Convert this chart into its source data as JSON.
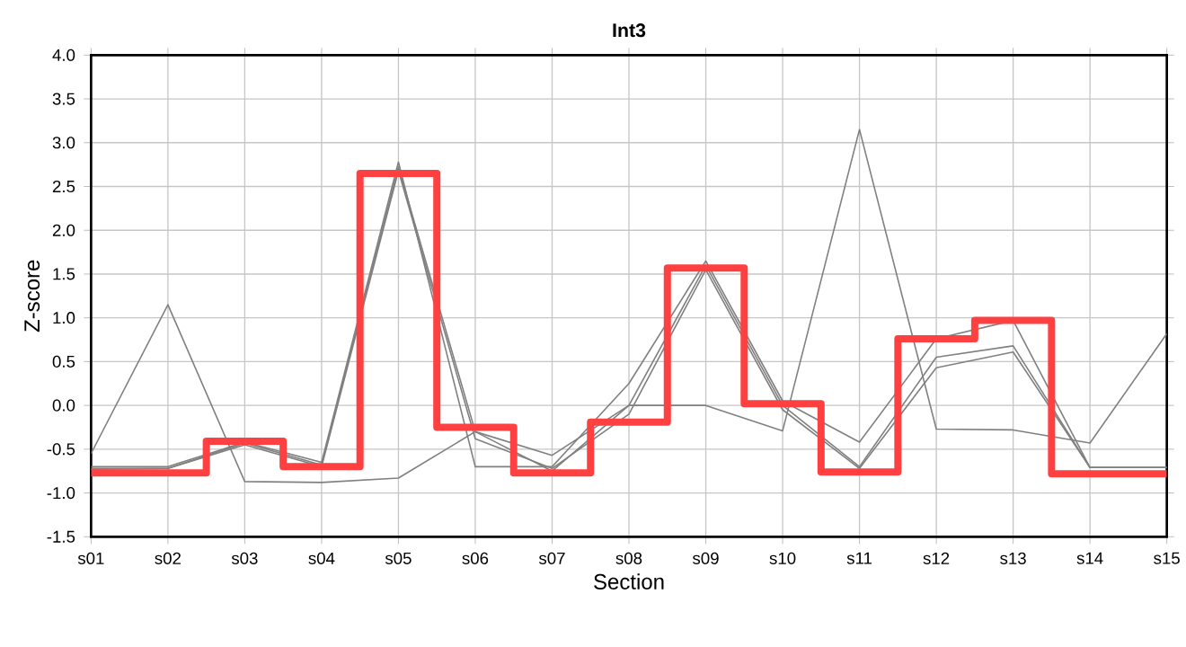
{
  "chart_data": {
    "type": "line",
    "title": "Int3",
    "xlabel": "Section",
    "ylabel": "Z-score",
    "categories": [
      "s01",
      "s02",
      "s03",
      "s04",
      "s05",
      "s06",
      "s07",
      "s08",
      "s09",
      "s10",
      "s11",
      "s12",
      "s13",
      "s14",
      "s15"
    ],
    "ylim": [
      -1.5,
      4.0
    ],
    "yticks": [
      {
        "value": -1.5,
        "label": "-1.5"
      },
      {
        "value": -1.0,
        "label": "-1.0"
      },
      {
        "value": -0.5,
        "label": "-0.5"
      },
      {
        "value": 0.0,
        "label": "0.0"
      },
      {
        "value": 0.5,
        "label": "0.5"
      },
      {
        "value": 1.0,
        "label": "1.0"
      },
      {
        "value": 1.5,
        "label": "1.5"
      },
      {
        "value": 2.0,
        "label": "2.0"
      },
      {
        "value": 2.5,
        "label": "2.5"
      },
      {
        "value": 3.0,
        "label": "3.0"
      },
      {
        "value": 3.5,
        "label": "3.5"
      },
      {
        "value": 4.0,
        "label": "4.0"
      }
    ],
    "grid": true,
    "marker": "none",
    "series": [
      {
        "color": "#808080",
        "values": [
          -0.55,
          1.15,
          -0.87,
          -0.88,
          -0.83,
          -0.3,
          -0.57,
          0.0,
          0.0,
          -0.29,
          3.15,
          -0.27,
          -0.28,
          -0.43,
          0.82
        ]
      },
      {
        "color": "#808080",
        "values": [
          -0.7,
          -0.7,
          -0.42,
          -0.65,
          2.78,
          -0.7,
          -0.7,
          0.25,
          1.65,
          0.05,
          -0.42,
          0.76,
          0.97,
          -0.71,
          -0.71
        ]
      },
      {
        "color": "#808080",
        "values": [
          -0.72,
          -0.72,
          -0.43,
          -0.68,
          2.72,
          -0.3,
          -0.75,
          0.0,
          1.6,
          0.0,
          -0.7,
          0.55,
          0.68,
          -0.71,
          -0.71
        ]
      },
      {
        "color": "#808080",
        "values": [
          -0.73,
          -0.72,
          -0.45,
          -0.7,
          2.68,
          -0.38,
          -0.72,
          -0.1,
          1.55,
          -0.05,
          -0.72,
          0.43,
          0.61,
          -0.71,
          -0.71
        ]
      },
      {
        "type": "step",
        "color": "#ff4040",
        "values": [
          -0.77,
          -0.77,
          -0.41,
          -0.7,
          2.65,
          -0.25,
          -0.77,
          -0.19,
          1.57,
          0.02,
          -0.76,
          0.76,
          0.97,
          -0.78,
          -0.78
        ]
      }
    ]
  }
}
